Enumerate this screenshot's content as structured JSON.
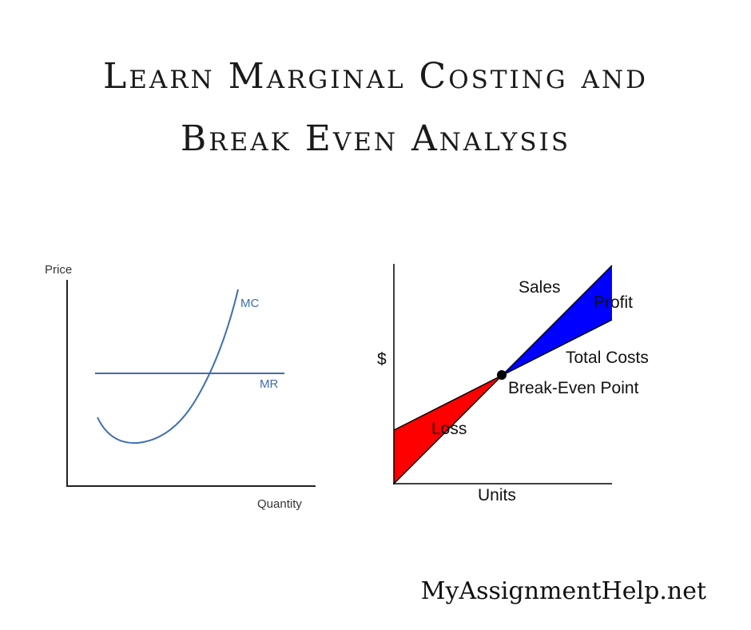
{
  "title": {
    "line1": "Learn Marginal Costing and",
    "line2": "Break Even Analysis"
  },
  "left_diagram": {
    "y_axis_label": "Price",
    "x_axis_label": "Quantity",
    "mc_label": "MC",
    "mr_label": "MR",
    "line_color": "#3d6db3"
  },
  "right_diagram": {
    "y_axis_label": "$",
    "x_axis_label": "Units",
    "sales_label": "Sales",
    "profit_label": "Profit",
    "total_costs_label": "Total Costs",
    "break_even_label": "Break-Even Point",
    "loss_label": "Loss",
    "profit_color": "#0000ff",
    "loss_color": "#ff0000"
  },
  "footer": {
    "site": "MyAssignmentHelp.net"
  }
}
